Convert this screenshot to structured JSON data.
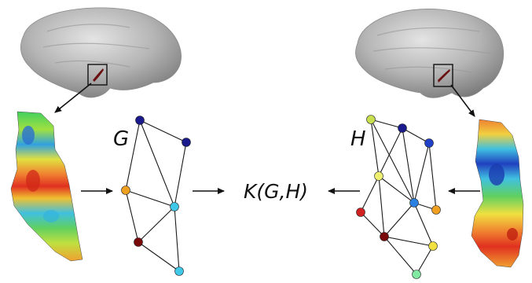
{
  "graph_g": {
    "label": "G",
    "nodes": [
      {
        "id": "g1",
        "color": "#1a1a8c"
      },
      {
        "id": "g2",
        "color": "#1a1a8c"
      },
      {
        "id": "g3",
        "color": "#f0a020"
      },
      {
        "id": "g4",
        "color": "#40c8e8"
      },
      {
        "id": "g5",
        "color": "#7a0a0a"
      },
      {
        "id": "g6",
        "color": "#40c8e8"
      }
    ],
    "edges": [
      [
        "g1",
        "g2"
      ],
      [
        "g1",
        "g3"
      ],
      [
        "g1",
        "g4"
      ],
      [
        "g2",
        "g4"
      ],
      [
        "g3",
        "g4"
      ],
      [
        "g3",
        "g5"
      ],
      [
        "g4",
        "g5"
      ],
      [
        "g4",
        "g6"
      ],
      [
        "g5",
        "g6"
      ]
    ]
  },
  "graph_h": {
    "label": "H",
    "nodes": [
      {
        "id": "h1",
        "color": "#c8e050"
      },
      {
        "id": "h2",
        "color": "#1a1a8c"
      },
      {
        "id": "h3",
        "color": "#2040c8"
      },
      {
        "id": "h4",
        "color": "#f0f070"
      },
      {
        "id": "h5",
        "color": "#2a80e0"
      },
      {
        "id": "h6",
        "color": "#f0a020"
      },
      {
        "id": "h7",
        "color": "#d02020"
      },
      {
        "id": "h8",
        "color": "#7a0a0a"
      },
      {
        "id": "h9",
        "color": "#f0e040"
      },
      {
        "id": "h10",
        "color": "#80e8a0"
      }
    ],
    "edges": [
      [
        "h1",
        "h2"
      ],
      [
        "h1",
        "h4"
      ],
      [
        "h1",
        "h5"
      ],
      [
        "h2",
        "h3"
      ],
      [
        "h2",
        "h4"
      ],
      [
        "h2",
        "h5"
      ],
      [
        "h3",
        "h5"
      ],
      [
        "h3",
        "h6"
      ],
      [
        "h4",
        "h5"
      ],
      [
        "h4",
        "h7"
      ],
      [
        "h4",
        "h8"
      ],
      [
        "h5",
        "h6"
      ],
      [
        "h5",
        "h8"
      ],
      [
        "h5",
        "h9"
      ],
      [
        "h7",
        "h8"
      ],
      [
        "h8",
        "h9"
      ],
      [
        "h8",
        "h10"
      ],
      [
        "h9",
        "h10"
      ]
    ]
  },
  "kernel": {
    "label": "K(G,H)"
  },
  "colors": {
    "brain_surface": "#b8b8b8",
    "region_marker": "#6a1010",
    "arrow": "#111111"
  }
}
